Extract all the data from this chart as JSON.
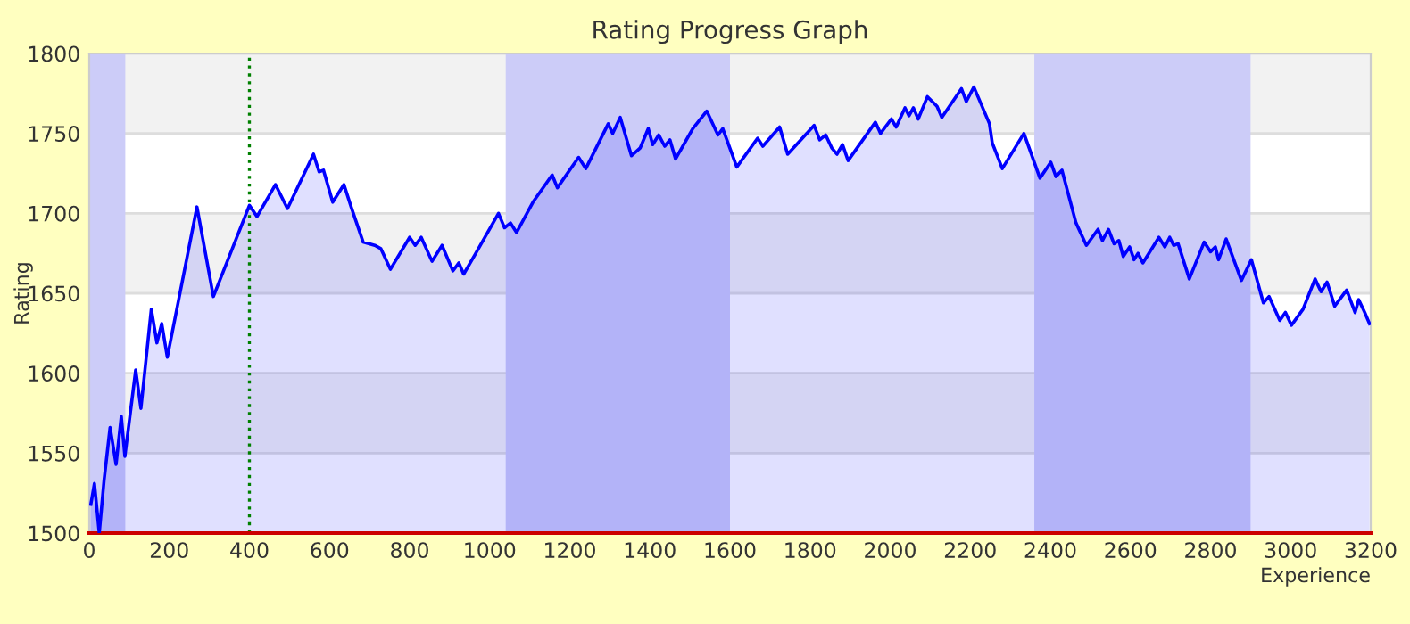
{
  "chart_data": {
    "type": "area",
    "title": "Rating Progress Graph",
    "xlabel": "Experience",
    "ylabel": "Rating",
    "xlim": [
      0,
      3200
    ],
    "xticks": [
      0,
      200,
      400,
      600,
      800,
      1000,
      1200,
      1400,
      1600,
      1800,
      2000,
      2200,
      2400,
      2600,
      2800,
      3000,
      3200
    ],
    "ylim": [
      1500,
      1800
    ],
    "yticks": [
      1500,
      1550,
      1600,
      1650,
      1700,
      1750,
      1800
    ],
    "grid": "y",
    "legend": false,
    "ref_lines": [
      {
        "axis": "x",
        "value": 400,
        "color": "#008000",
        "line_style": "dotted"
      }
    ],
    "bands": [
      {
        "axis": "x",
        "from": 0,
        "to": 90,
        "color": "#ccccf8"
      },
      {
        "axis": "x",
        "from": 1040,
        "to": 1600,
        "color": "#ccccf8"
      },
      {
        "axis": "x",
        "from": 2360,
        "to": 2900,
        "color": "#ccccf8"
      }
    ],
    "series": [
      {
        "color": "#0000ff",
        "x": [
          4,
          13,
          25,
          37,
          52,
          67,
          80,
          89,
          116,
          129,
          155,
          169,
          181,
          195,
          269,
          310,
          400,
          419,
          465,
          495,
          560,
          574,
          585,
          608,
          636,
          654,
          684,
          713,
          728,
          752,
          800,
          814,
          829,
          856,
          881,
          908,
          923,
          935,
          963,
          1022,
          1037,
          1052,
          1067,
          1108,
          1156,
          1169,
          1222,
          1240,
          1296,
          1307,
          1326,
          1354,
          1376,
          1396,
          1407,
          1422,
          1437,
          1450,
          1464,
          1507,
          1542,
          1570,
          1582,
          1617,
          1669,
          1682,
          1724,
          1744,
          1810,
          1824,
          1839,
          1854,
          1867,
          1881,
          1895,
          1963,
          1976,
          2003,
          2015,
          2037,
          2047,
          2058,
          2070,
          2093,
          2117,
          2129,
          2178,
          2190,
          2209,
          2248,
          2255,
          2280,
          2334,
          2374,
          2401,
          2414,
          2429,
          2464,
          2490,
          2519,
          2530,
          2545,
          2559,
          2571,
          2582,
          2598,
          2609,
          2619,
          2631,
          2671,
          2686,
          2698,
          2708,
          2719,
          2747,
          2784,
          2800,
          2812,
          2820,
          2839,
          2877,
          2902,
          2932,
          2946,
          2973,
          2987,
          3002,
          3031,
          3061,
          3076,
          3091,
          3110,
          3140,
          3161,
          3170,
          3185,
          3197
        ],
        "values": [
          1518,
          1531,
          1500,
          1533,
          1566,
          1543,
          1573,
          1548,
          1602,
          1578,
          1640,
          1619,
          1631,
          1610,
          1704,
          1648,
          1705,
          1698,
          1718,
          1703,
          1737,
          1726,
          1727,
          1707,
          1718,
          1704,
          1682,
          1680,
          1678,
          1665,
          1685,
          1680,
          1685,
          1670,
          1680,
          1664,
          1669,
          1662,
          1674,
          1700,
          1691,
          1694,
          1688,
          1707,
          1724,
          1716,
          1735,
          1728,
          1756,
          1750,
          1760,
          1736,
          1741,
          1753,
          1743,
          1749,
          1742,
          1746,
          1734,
          1753,
          1764,
          1749,
          1753,
          1729,
          1747,
          1742,
          1754,
          1737,
          1755,
          1746,
          1749,
          1741,
          1737,
          1743,
          1733,
          1757,
          1750,
          1759,
          1754,
          1766,
          1761,
          1766,
          1759,
          1773,
          1767,
          1760,
          1778,
          1770,
          1779,
          1756,
          1744,
          1728,
          1750,
          1722,
          1732,
          1723,
          1727,
          1694,
          1680,
          1690,
          1683,
          1690,
          1681,
          1683,
          1673,
          1679,
          1671,
          1675,
          1669,
          1685,
          1679,
          1685,
          1680,
          1681,
          1659,
          1682,
          1676,
          1679,
          1671,
          1684,
          1658,
          1671,
          1644,
          1648,
          1633,
          1638,
          1630,
          1640,
          1659,
          1651,
          1657,
          1642,
          1652,
          1638,
          1646,
          1638,
          1631
        ]
      }
    ]
  }
}
